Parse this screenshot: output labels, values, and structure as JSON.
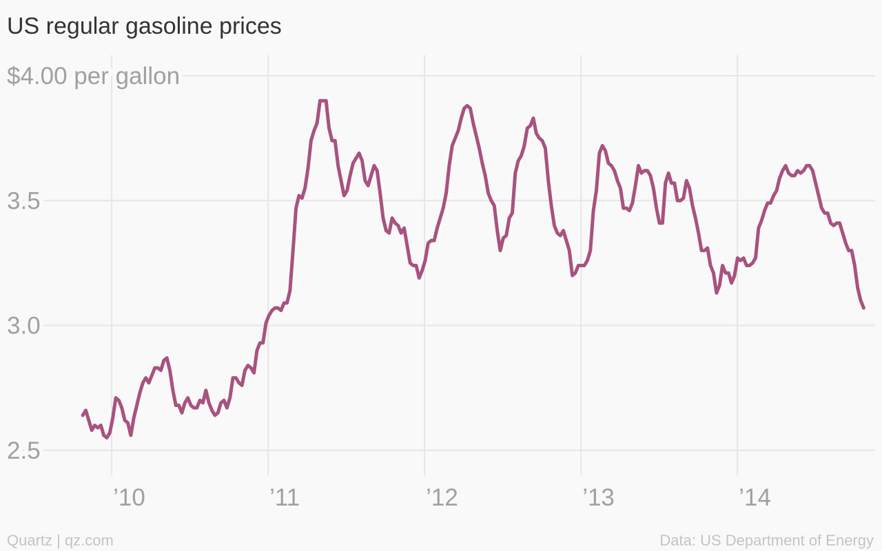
{
  "chart_data": {
    "type": "line",
    "title": "US regular gasoline prices",
    "source_left": "Quartz | qz.com",
    "source_right": "Data: US Department of Energy",
    "color": "#a8527f",
    "grid": true,
    "xlim": [
      2009.33,
      2014.88
    ],
    "xticks": [
      {
        "value": 2010,
        "label": "’10"
      },
      {
        "value": 2011,
        "label": "’11"
      },
      {
        "value": 2012,
        "label": "’12"
      },
      {
        "value": 2013,
        "label": "’13"
      },
      {
        "value": 2014,
        "label": "’14"
      }
    ],
    "ylim": [
      2.4,
      4.0
    ],
    "yticks": [
      2.5,
      {
        "value": 3,
        "label": "3.0"
      },
      3.5,
      {
        "value": 4,
        "label": "$4.00 per gallon"
      }
    ],
    "x": [
      2009.815,
      2009.8342,
      2009.8534,
      2009.8726,
      2009.8918,
      2009.911,
      2009.9302,
      2009.9494,
      2009.9686,
      2009.9878,
      2010.007,
      2010.0262,
      2010.0454,
      2010.0646,
      2010.0838,
      2010.103,
      2010.1222,
      2010.1414,
      2010.1606,
      2010.1798,
      2010.199,
      2010.2182,
      2010.2374,
      2010.2566,
      2010.2758,
      2010.295,
      2010.3142,
      2010.3334,
      2010.3526,
      2010.3718,
      2010.391,
      2010.4102,
      2010.4294,
      2010.4486,
      2010.4678,
      2010.487,
      2010.5062,
      2010.5254,
      2010.5446,
      2010.5638,
      2010.583,
      2010.6022,
      2010.6214,
      2010.6406,
      2010.6598,
      2010.679,
      2010.6982,
      2010.7174,
      2010.7366,
      2010.7558,
      2010.775,
      2010.7942,
      2010.8134,
      2010.8326,
      2010.8518,
      2010.871,
      2010.8902,
      2010.9094,
      2010.9286,
      2010.9478,
      2010.967,
      2010.9862,
      2011.0054,
      2011.0246,
      2011.0438,
      2011.063,
      2011.0822,
      2011.1014,
      2011.1206,
      2011.1398,
      2011.159,
      2011.1782,
      2011.1974,
      2011.2166,
      2011.2358,
      2011.255,
      2011.2742,
      2011.2934,
      2011.3126,
      2011.3318,
      2011.351,
      2011.3702,
      2011.3894,
      2011.4086,
      2011.4278,
      2011.447,
      2011.4662,
      2011.4854,
      2011.5046,
      2011.5238,
      2011.543,
      2011.5622,
      2011.5814,
      2011.6006,
      2011.6198,
      2011.639,
      2011.6582,
      2011.6774,
      2011.6966,
      2011.7158,
      2011.735,
      2011.7542,
      2011.7734,
      2011.7926,
      2011.8118,
      2011.831,
      2011.8502,
      2011.8694,
      2011.8886,
      2011.9078,
      2011.927,
      2011.9462,
      2011.9654,
      2011.9846,
      2012.0038,
      2012.023,
      2012.0422,
      2012.0614,
      2012.0806,
      2012.0998,
      2012.119,
      2012.1382,
      2012.1574,
      2012.1766,
      2012.1958,
      2012.215,
      2012.2342,
      2012.2534,
      2012.2726,
      2012.2918,
      2012.311,
      2012.3302,
      2012.3494,
      2012.3686,
      2012.3878,
      2012.407,
      2012.4262,
      2012.4454,
      2012.4646,
      2012.4838,
      2012.503,
      2012.5222,
      2012.5414,
      2012.5606,
      2012.5798,
      2012.599,
      2012.6182,
      2012.6374,
      2012.6566,
      2012.6758,
      2012.695,
      2012.7142,
      2012.7334,
      2012.7526,
      2012.7718,
      2012.791,
      2012.8102,
      2012.8294,
      2012.8486,
      2012.8678,
      2012.887,
      2012.9062,
      2012.9254,
      2012.9446,
      2012.9638,
      2012.983,
      2013.0022,
      2013.0214,
      2013.0406,
      2013.0598,
      2013.079,
      2013.0982,
      2013.1174,
      2013.1366,
      2013.1558,
      2013.175,
      2013.1942,
      2013.2134,
      2013.2326,
      2013.2518,
      2013.271,
      2013.2902,
      2013.3094,
      2013.3286,
      2013.3478,
      2013.367,
      2013.3862,
      2013.4054,
      2013.4246,
      2013.4438,
      2013.463,
      2013.4822,
      2013.5014,
      2013.5206,
      2013.5398,
      2013.559,
      2013.5782,
      2013.5974,
      2013.6166,
      2013.6358,
      2013.655,
      2013.6742,
      2013.6934,
      2013.7126,
      2013.7318,
      2013.751,
      2013.7702,
      2013.7894,
      2013.8086,
      2013.8278,
      2013.847,
      2013.8662,
      2013.8854,
      2013.9046,
      2013.9238,
      2013.943,
      2013.9622,
      2013.9814,
      2014.0006,
      2014.0198,
      2014.039,
      2014.0582,
      2014.0774,
      2014.0966,
      2014.1158,
      2014.135,
      2014.1542,
      2014.1734,
      2014.1926,
      2014.2118,
      2014.231,
      2014.2502,
      2014.2694,
      2014.2886,
      2014.3078,
      2014.327,
      2014.3462,
      2014.3654,
      2014.3846,
      2014.4038,
      2014.423,
      2014.4422,
      2014.4614,
      2014.4806,
      2014.4998,
      2014.519,
      2014.5382,
      2014.5574,
      2014.5766,
      2014.5958,
      2014.615,
      2014.6342,
      2014.6534,
      2014.6726,
      2014.6918,
      2014.711,
      2014.7302,
      2014.7494,
      2014.7686,
      2014.7878,
      2014.807
    ],
    "values": [
      2.64,
      2.66,
      2.62,
      2.58,
      2.6,
      2.59,
      2.6,
      2.56,
      2.55,
      2.57,
      2.63,
      2.71,
      2.7,
      2.67,
      2.62,
      2.61,
      2.56,
      2.63,
      2.68,
      2.73,
      2.77,
      2.79,
      2.77,
      2.8,
      2.83,
      2.83,
      2.82,
      2.86,
      2.87,
      2.82,
      2.74,
      2.68,
      2.68,
      2.65,
      2.69,
      2.71,
      2.68,
      2.67,
      2.67,
      2.7,
      2.69,
      2.74,
      2.69,
      2.66,
      2.64,
      2.65,
      2.69,
      2.7,
      2.67,
      2.71,
      2.79,
      2.79,
      2.77,
      2.76,
      2.82,
      2.84,
      2.83,
      2.81,
      2.9,
      2.93,
      2.93,
      3.01,
      3.04,
      3.06,
      3.07,
      3.07,
      3.06,
      3.09,
      3.09,
      3.14,
      3.3,
      3.47,
      3.52,
      3.51,
      3.55,
      3.63,
      3.74,
      3.78,
      3.81,
      3.9,
      3.9,
      3.9,
      3.79,
      3.74,
      3.74,
      3.64,
      3.58,
      3.52,
      3.54,
      3.6,
      3.65,
      3.67,
      3.69,
      3.66,
      3.58,
      3.56,
      3.6,
      3.64,
      3.62,
      3.53,
      3.43,
      3.38,
      3.37,
      3.43,
      3.41,
      3.4,
      3.37,
      3.39,
      3.32,
      3.25,
      3.24,
      3.24,
      3.19,
      3.22,
      3.26,
      3.33,
      3.34,
      3.34,
      3.39,
      3.43,
      3.47,
      3.53,
      3.64,
      3.72,
      3.75,
      3.78,
      3.83,
      3.87,
      3.88,
      3.87,
      3.81,
      3.76,
      3.71,
      3.65,
      3.6,
      3.53,
      3.5,
      3.48,
      3.38,
      3.3,
      3.35,
      3.36,
      3.43,
      3.45,
      3.61,
      3.66,
      3.68,
      3.72,
      3.79,
      3.8,
      3.83,
      3.77,
      3.75,
      3.74,
      3.71,
      3.58,
      3.48,
      3.4,
      3.37,
      3.36,
      3.38,
      3.34,
      3.3,
      3.2,
      3.21,
      3.24,
      3.24,
      3.24,
      3.26,
      3.3,
      3.46,
      3.54,
      3.69,
      3.72,
      3.7,
      3.65,
      3.64,
      3.62,
      3.58,
      3.55,
      3.47,
      3.47,
      3.46,
      3.49,
      3.56,
      3.64,
      3.61,
      3.62,
      3.62,
      3.6,
      3.55,
      3.47,
      3.41,
      3.41,
      3.57,
      3.61,
      3.57,
      3.57,
      3.5,
      3.5,
      3.51,
      3.58,
      3.55,
      3.48,
      3.43,
      3.37,
      3.3,
      3.3,
      3.31,
      3.24,
      3.21,
      3.13,
      3.16,
      3.24,
      3.21,
      3.21,
      3.17,
      3.2,
      3.27,
      3.26,
      3.27,
      3.24,
      3.24,
      3.25,
      3.27,
      3.39,
      3.42,
      3.46,
      3.49,
      3.49,
      3.52,
      3.54,
      3.59,
      3.62,
      3.64,
      3.61,
      3.6,
      3.6,
      3.62,
      3.61,
      3.62,
      3.64,
      3.64,
      3.62,
      3.57,
      3.52,
      3.47,
      3.45,
      3.45,
      3.41,
      3.4,
      3.41,
      3.41,
      3.37,
      3.33,
      3.3,
      3.3,
      3.24,
      3.15,
      3.1,
      3.07
    ]
  }
}
